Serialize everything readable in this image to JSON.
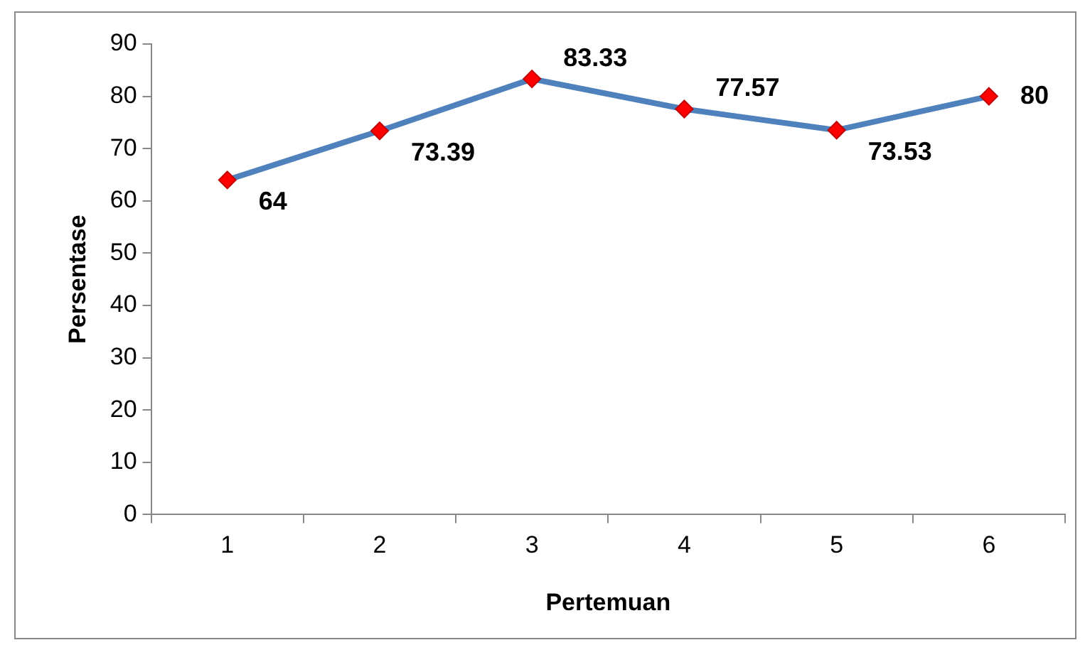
{
  "chart_data": {
    "type": "line",
    "xlabel": "Pertemuan",
    "ylabel": "Persentase",
    "categories": [
      "1",
      "2",
      "3",
      "4",
      "5",
      "6"
    ],
    "series": [
      {
        "color": "#4f81bd",
        "values": [
          64,
          73.39,
          83.33,
          77.57,
          73.53,
          80
        ]
      }
    ],
    "ylim": [
      0,
      90
    ],
    "yticks": [
      0,
      10,
      20,
      30,
      40,
      50,
      60,
      70,
      80,
      90
    ],
    "grid": false,
    "legend": false,
    "marker": "diamond",
    "data_labels": true
  }
}
